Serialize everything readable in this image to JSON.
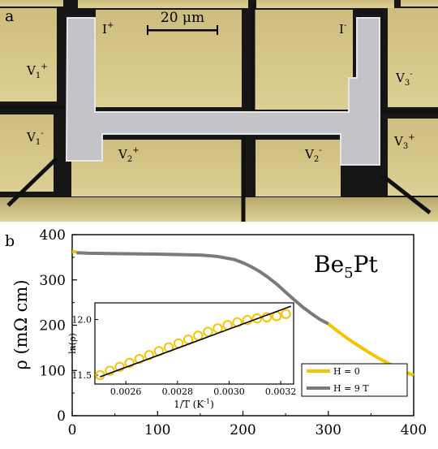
{
  "panel_a": {
    "label": "a",
    "scale_bar": "20 μm",
    "contacts": [
      {
        "name": "I",
        "sup": "+"
      },
      {
        "name": "I",
        "sup": "-"
      },
      {
        "name": "V",
        "sub": "1",
        "sup": "+"
      },
      {
        "name": "V",
        "sub": "1",
        "sup": "-"
      },
      {
        "name": "V",
        "sub": "2",
        "sup": "+"
      },
      {
        "name": "V",
        "sub": "2",
        "sup": "-"
      },
      {
        "name": "V",
        "sub": "3",
        "sup": "-"
      },
      {
        "name": "V",
        "sub": "3",
        "sup": "+"
      }
    ],
    "colors": {
      "electrode": "#d9ca8c",
      "sample": "#c4c4c8",
      "gap": "#111111"
    }
  },
  "chart_data": [
    {
      "type": "line",
      "panel_label": "b",
      "annotation": "Be5Pt",
      "ylabel": "ρ (mΩ cm)",
      "xlim": [
        0,
        400
      ],
      "ylim": [
        0,
        400
      ],
      "x_ticks": [
        0,
        100,
        200,
        300,
        400
      ],
      "y_ticks": [
        0,
        100,
        200,
        300,
        400
      ],
      "grid": false,
      "legend": "bottom-right",
      "series": [
        {
          "name": "H = 0",
          "color": "#f5c400",
          "x": [
            0,
            5,
            300,
            310,
            320,
            330,
            340,
            350,
            360,
            370,
            380,
            390,
            400
          ],
          "y": [
            362,
            362,
            203,
            188,
            174,
            161,
            149,
            137,
            126,
            116,
            106,
            97,
            89
          ]
        },
        {
          "name": "H = 9 T",
          "color": "#7a7a7a",
          "x": [
            5,
            20,
            50,
            100,
            150,
            170,
            190,
            200,
            210,
            220,
            230,
            240,
            250,
            260,
            270,
            280,
            290,
            300
          ],
          "y": [
            360,
            359,
            358,
            357,
            355,
            352,
            345,
            338,
            329,
            318,
            305,
            290,
            273,
            256,
            240,
            226,
            213,
            203
          ]
        }
      ]
    },
    {
      "type": "scatter",
      "xlabel": "1/T (K⁻¹)",
      "ylabel": "ln(ρ)",
      "xlim": [
        0.00248,
        0.00325
      ],
      "ylim": [
        11.42,
        12.15
      ],
      "x_ticks": [
        "0.0026",
        "0.0028",
        "0.0030",
        "0.0032"
      ],
      "y_ticks": [
        "11.5",
        "12.0"
      ],
      "series": [
        {
          "name": "data",
          "color": "#f5c400",
          "x": [
            0.0025,
            0.002538,
            0.002576,
            0.002614,
            0.002652,
            0.00269,
            0.002728,
            0.002766,
            0.002804,
            0.002842,
            0.00288,
            0.002918,
            0.002956,
            0.002994,
            0.003032,
            0.00307,
            0.003108,
            0.003146,
            0.003184,
            0.00322
          ],
          "y": [
            11.5,
            11.54,
            11.575,
            11.61,
            11.645,
            11.68,
            11.715,
            11.75,
            11.785,
            11.82,
            11.855,
            11.89,
            11.92,
            11.95,
            11.975,
            11.995,
            12.01,
            12.02,
            12.03,
            12.05
          ]
        },
        {
          "name": "fit",
          "color": "#000000",
          "x": [
            0.0025,
            0.00324
          ],
          "y": [
            11.485,
            12.12
          ]
        }
      ]
    }
  ]
}
